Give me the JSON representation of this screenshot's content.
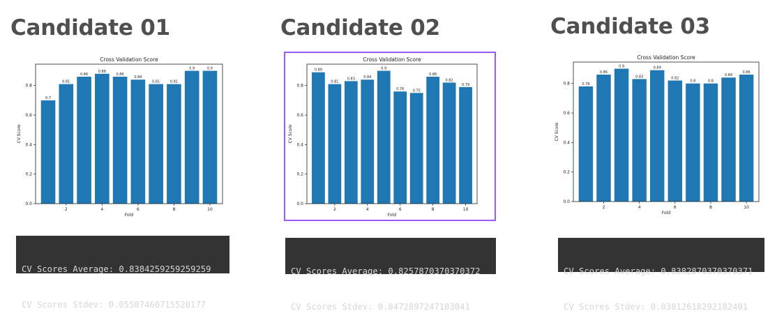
{
  "candidates": [
    {
      "heading": "Candidate 01",
      "cv_average_text": "CV Scores Average: 0.8384259259259259",
      "cv_stdev_text": "CV Scores Stdev: 0.05507460715520177",
      "selected": false
    },
    {
      "heading": "Candidate 02",
      "cv_average_text": "CV Scores Average: 0.8257870370370372",
      "cv_stdev_text": "CV Scores Stdev: 0.0472897247103041",
      "selected": true
    },
    {
      "heading": "Candidate 03",
      "cv_average_text": "CV Scores Average: 0.8382870370370371",
      "cv_stdev_text": "CV Scores Stdev: 0.03812618292182401",
      "selected": false
    }
  ],
  "colors": {
    "bar": "#1f77b4",
    "selection_border": "#9b59f5",
    "terminal_bg": "#333333",
    "terminal_text": "#d6d6d6",
    "heading": "#4f4f4f"
  },
  "chart_data": [
    {
      "type": "bar",
      "title": "Cross Validation Score",
      "xlabel": "Fold",
      "ylabel": "CV Score",
      "categories": [
        1,
        2,
        3,
        4,
        5,
        6,
        7,
        8,
        9,
        10
      ],
      "values": [
        0.7,
        0.81,
        0.86,
        0.88,
        0.86,
        0.84,
        0.81,
        0.81,
        0.9,
        0.9
      ],
      "value_labels": [
        "0.7",
        "0.81",
        "0.86",
        "0.88",
        "0.86",
        "0.84",
        "0.81",
        "0.81",
        "0.9",
        "0.9"
      ],
      "xticks": [
        "2",
        "4",
        "6",
        "8",
        "10"
      ],
      "yticks": [
        "0.0",
        "0.2",
        "0.4",
        "0.6",
        "0.8"
      ],
      "ylim": [
        0,
        0.945
      ]
    },
    {
      "type": "bar",
      "title": "Cross Validation Score",
      "xlabel": "Fold",
      "ylabel": "CV Score",
      "categories": [
        1,
        2,
        3,
        4,
        5,
        6,
        7,
        8,
        9,
        10
      ],
      "values": [
        0.89,
        0.81,
        0.83,
        0.84,
        0.9,
        0.76,
        0.75,
        0.86,
        0.82,
        0.79
      ],
      "value_labels": [
        "0.89",
        "0.81",
        "0.83",
        "0.84",
        "0.9",
        "0.76",
        "0.75",
        "0.86",
        "0.82",
        "0.79"
      ],
      "xticks": [
        "2",
        "4",
        "6",
        "8",
        "10"
      ],
      "yticks": [
        "0.0",
        "0.2",
        "0.4",
        "0.6",
        "0.8"
      ],
      "ylim": [
        0,
        0.945
      ]
    },
    {
      "type": "bar",
      "title": "Cross Validation Score",
      "xlabel": "Fold",
      "ylabel": "CV Score",
      "categories": [
        1,
        2,
        3,
        4,
        5,
        6,
        7,
        8,
        9,
        10
      ],
      "values": [
        0.78,
        0.86,
        0.9,
        0.83,
        0.89,
        0.82,
        0.8,
        0.8,
        0.84,
        0.86
      ],
      "value_labels": [
        "0.78",
        "0.86",
        "0.9",
        "0.83",
        "0.89",
        "0.82",
        "0.8",
        "0.8",
        "0.84",
        "0.86"
      ],
      "xticks": [
        "2",
        "4",
        "6",
        "8",
        "10"
      ],
      "yticks": [
        "0.0",
        "0.2",
        "0.4",
        "0.6",
        "0.8"
      ],
      "ylim": [
        0,
        0.945
      ]
    }
  ]
}
